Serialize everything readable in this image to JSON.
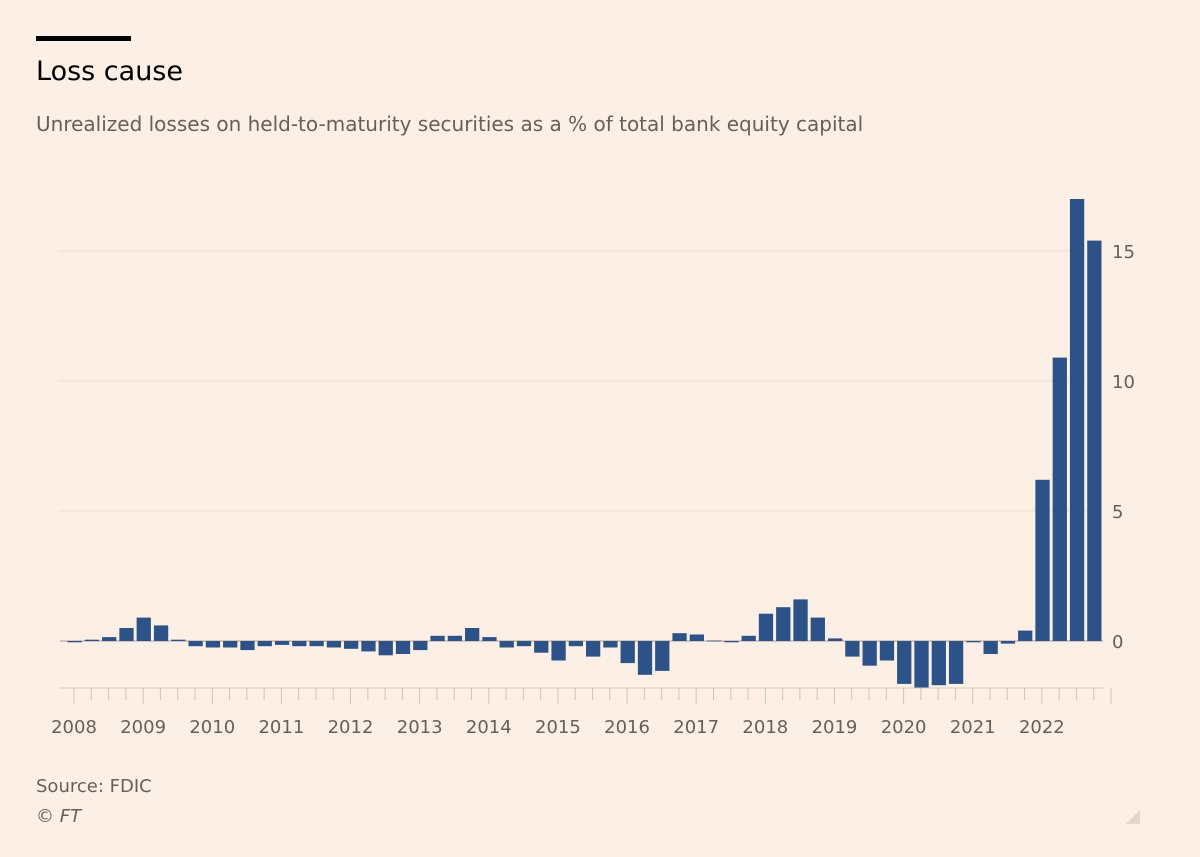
{
  "header": {
    "title": "Loss cause",
    "subtitle": "Unrealized losses on held-to-maturity securities as a % of total bank equity capital"
  },
  "footer": {
    "source": "Source: FDIC",
    "copyright": "© FT"
  },
  "colors": {
    "background": "#fcefe5",
    "bar": "#2c5288",
    "gridline": "#eee0d5",
    "axis_text": "#66605c"
  },
  "chart_data": {
    "type": "bar",
    "title": "Loss cause",
    "subtitle": "Unrealized losses on held-to-maturity securities as a % of total bank equity capital",
    "xlabel": "",
    "ylabel": "",
    "ylim": [
      -2,
      17
    ],
    "yticks": [
      0,
      5,
      10,
      15
    ],
    "grid": true,
    "x_tick_labels": [
      "2008",
      "2009",
      "2010",
      "2011",
      "2012",
      "2013",
      "2014",
      "2015",
      "2016",
      "2017",
      "2018",
      "2019",
      "2020",
      "2021",
      "2022"
    ],
    "categories": [
      "2008 Q1",
      "2008 Q2",
      "2008 Q3",
      "2008 Q4",
      "2009 Q1",
      "2009 Q2",
      "2009 Q3",
      "2009 Q4",
      "2010 Q1",
      "2010 Q2",
      "2010 Q3",
      "2010 Q4",
      "2011 Q1",
      "2011 Q2",
      "2011 Q3",
      "2011 Q4",
      "2012 Q1",
      "2012 Q2",
      "2012 Q3",
      "2012 Q4",
      "2013 Q1",
      "2013 Q2",
      "2013 Q3",
      "2013 Q4",
      "2014 Q1",
      "2014 Q2",
      "2014 Q3",
      "2014 Q4",
      "2015 Q1",
      "2015 Q2",
      "2015 Q3",
      "2015 Q4",
      "2016 Q1",
      "2016 Q2",
      "2016 Q3",
      "2016 Q4",
      "2017 Q1",
      "2017 Q2",
      "2017 Q3",
      "2017 Q4",
      "2018 Q1",
      "2018 Q2",
      "2018 Q3",
      "2018 Q4",
      "2019 Q1",
      "2019 Q2",
      "2019 Q3",
      "2019 Q4",
      "2020 Q1",
      "2020 Q2",
      "2020 Q3",
      "2020 Q4",
      "2021 Q1",
      "2021 Q2",
      "2021 Q3",
      "2021 Q4",
      "2022 Q1",
      "2022 Q2",
      "2022 Q3",
      "2022 Q4"
    ],
    "series": [
      {
        "name": "Unrealized losses on HTM securities (% of equity capital)",
        "values": [
          -0.05,
          0.05,
          0.15,
          0.5,
          0.9,
          0.6,
          0.05,
          -0.2,
          -0.25,
          -0.25,
          -0.35,
          -0.2,
          -0.15,
          -0.2,
          -0.2,
          -0.25,
          -0.3,
          -0.4,
          -0.55,
          -0.5,
          -0.35,
          0.2,
          0.2,
          0.5,
          0.15,
          -0.25,
          -0.2,
          -0.45,
          -0.75,
          -0.2,
          -0.6,
          -0.25,
          -0.85,
          -1.3,
          -1.15,
          0.3,
          0.25,
          0.0,
          -0.05,
          0.2,
          1.05,
          1.3,
          1.6,
          0.9,
          0.1,
          -0.6,
          -0.95,
          -0.75,
          -1.65,
          -1.8,
          -1.7,
          -1.65,
          -0.05,
          -0.5,
          -0.1,
          0.4,
          6.2,
          10.9,
          17.0,
          15.4
        ]
      }
    ]
  }
}
